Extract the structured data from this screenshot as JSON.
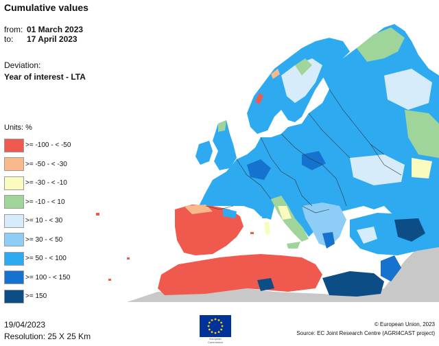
{
  "header": {
    "title": "Cumulative values",
    "from_label": "from:",
    "from_value": "01 March 2023",
    "to_label": "to:",
    "to_value": "17 April 2023",
    "deviation_label": "Deviation:",
    "deviation_value": "Year of interest - LTA"
  },
  "legend": {
    "units": "Units: %",
    "classes": [
      {
        "label": ">= -100 - < -50",
        "color": "#f0594d"
      },
      {
        "label": ">= -50 - < -30",
        "color": "#f9b98a"
      },
      {
        "label": ">= -30 - < -10",
        "color": "#fafbbe"
      },
      {
        "label": ">= -10 - < 10",
        "color": "#9fd49a"
      },
      {
        "label": ">= 10 - < 30",
        "color": "#d6ecfa"
      },
      {
        "label": ">= 30 - < 50",
        "color": "#8ecdf5"
      },
      {
        "label": ">= 50 - < 100",
        "color": "#2eaaf0"
      },
      {
        "label": ">= 100 - < 150",
        "color": "#1573cf"
      },
      {
        "label": ">= 150",
        "color": "#0d4d86"
      }
    ]
  },
  "footer": {
    "date": "19/04/2023",
    "resolution": "Resolution: 25 X 25 Km",
    "logo_caption_1": "European",
    "logo_caption_2": "Commission",
    "copyright": "© European Union, 2023",
    "source": "Source: EC Joint Research Centre (AGRI4CAST project)"
  },
  "colors": {
    "no_data": "#c8c8c8",
    "sea": "#ffffff",
    "border": "#333333",
    "eu_blue": "#003399",
    "eu_star": "#ffcc00"
  }
}
